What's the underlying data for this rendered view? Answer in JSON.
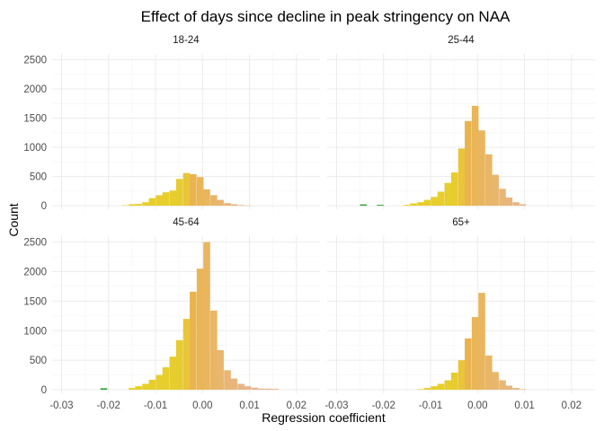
{
  "chart_data": {
    "type": "bar",
    "subtype": "faceted-histogram",
    "title": "Effect of days since decline in peak stringency on NAA",
    "xlabel": "Regression coefficient",
    "ylabel": "Count",
    "xlim": [
      -0.032,
      0.025
    ],
    "ylim": [
      -60,
      2600
    ],
    "x_ticks": [
      -0.03,
      -0.02,
      -0.01,
      0.0,
      0.01,
      0.02
    ],
    "x_tick_labels": [
      "-0.03",
      "-0.02",
      "-0.01",
      "0.00",
      "0.01",
      "0.02"
    ],
    "y_ticks": [
      0,
      500,
      1000,
      1500,
      2000,
      2500
    ],
    "y_tick_labels": [
      "0",
      "500",
      "1000",
      "1500",
      "2000",
      "2500"
    ],
    "grid": true,
    "legend": "none",
    "bin_width": 0.00145,
    "colors": {
      "negative_far": "#2ca02c",
      "negative_near": "#e8d226",
      "center": "#e9b44f",
      "positive": "#e8b58f"
    },
    "facets": [
      {
        "label": "18-24",
        "bins": [
          {
            "x": -0.0165,
            "count": 8
          },
          {
            "x": -0.015,
            "count": 25
          },
          {
            "x": -0.0136,
            "count": 30
          },
          {
            "x": -0.0121,
            "count": 60
          },
          {
            "x": -0.0107,
            "count": 130
          },
          {
            "x": -0.0092,
            "count": 180
          },
          {
            "x": -0.0078,
            "count": 230
          },
          {
            "x": -0.0063,
            "count": 260
          },
          {
            "x": -0.0049,
            "count": 460
          },
          {
            "x": -0.0034,
            "count": 560
          },
          {
            "x": -0.002,
            "count": 540
          },
          {
            "x": -0.0005,
            "count": 490
          },
          {
            "x": 0.0009,
            "count": 280
          },
          {
            "x": 0.0024,
            "count": 180
          },
          {
            "x": 0.0038,
            "count": 100
          },
          {
            "x": 0.0053,
            "count": 45
          },
          {
            "x": 0.0067,
            "count": 25
          },
          {
            "x": 0.0082,
            "count": 12
          },
          {
            "x": 0.0096,
            "count": 5
          }
        ]
      },
      {
        "label": "25-44",
        "bins": [
          {
            "x": -0.0243,
            "count": 22
          },
          {
            "x": -0.0207,
            "count": 15
          },
          {
            "x": -0.015,
            "count": 15
          },
          {
            "x": -0.0136,
            "count": 40
          },
          {
            "x": -0.0121,
            "count": 60
          },
          {
            "x": -0.0107,
            "count": 100
          },
          {
            "x": -0.0092,
            "count": 150
          },
          {
            "x": -0.0078,
            "count": 240
          },
          {
            "x": -0.0063,
            "count": 390
          },
          {
            "x": -0.0049,
            "count": 570
          },
          {
            "x": -0.0034,
            "count": 980
          },
          {
            "x": -0.002,
            "count": 1450
          },
          {
            "x": -0.0005,
            "count": 1710
          },
          {
            "x": 0.0009,
            "count": 1290
          },
          {
            "x": 0.0024,
            "count": 880
          },
          {
            "x": 0.0038,
            "count": 530
          },
          {
            "x": 0.0053,
            "count": 290
          },
          {
            "x": 0.0067,
            "count": 140
          },
          {
            "x": 0.0082,
            "count": 60
          },
          {
            "x": 0.0096,
            "count": 25
          }
        ]
      },
      {
        "label": "45-64",
        "bins": [
          {
            "x": -0.021,
            "count": 25
          },
          {
            "x": -0.015,
            "count": 30
          },
          {
            "x": -0.0136,
            "count": 60
          },
          {
            "x": -0.0121,
            "count": 100
          },
          {
            "x": -0.0107,
            "count": 170
          },
          {
            "x": -0.0092,
            "count": 250
          },
          {
            "x": -0.0078,
            "count": 380
          },
          {
            "x": -0.0063,
            "count": 560
          },
          {
            "x": -0.0049,
            "count": 840
          },
          {
            "x": -0.0034,
            "count": 1200
          },
          {
            "x": -0.002,
            "count": 1660
          },
          {
            "x": -0.0005,
            "count": 2050
          },
          {
            "x": 0.0009,
            "count": 2500
          },
          {
            "x": 0.0024,
            "count": 1340
          },
          {
            "x": 0.0038,
            "count": 670
          },
          {
            "x": 0.0053,
            "count": 330
          },
          {
            "x": 0.0067,
            "count": 190
          },
          {
            "x": 0.0082,
            "count": 100
          },
          {
            "x": 0.0096,
            "count": 60
          },
          {
            "x": 0.0111,
            "count": 35
          },
          {
            "x": 0.0125,
            "count": 20
          },
          {
            "x": 0.014,
            "count": 20
          },
          {
            "x": 0.0155,
            "count": 15
          }
        ]
      },
      {
        "label": "65+",
        "bins": [
          {
            "x": -0.0121,
            "count": 10
          },
          {
            "x": -0.0107,
            "count": 30
          },
          {
            "x": -0.0092,
            "count": 60
          },
          {
            "x": -0.0078,
            "count": 100
          },
          {
            "x": -0.0063,
            "count": 160
          },
          {
            "x": -0.0049,
            "count": 290
          },
          {
            "x": -0.0034,
            "count": 500
          },
          {
            "x": -0.002,
            "count": 870
          },
          {
            "x": -0.0005,
            "count": 1230
          },
          {
            "x": 0.0009,
            "count": 1640
          },
          {
            "x": 0.0024,
            "count": 580
          },
          {
            "x": 0.0038,
            "count": 300
          },
          {
            "x": 0.0053,
            "count": 160
          },
          {
            "x": 0.0067,
            "count": 70
          },
          {
            "x": 0.0082,
            "count": 30
          },
          {
            "x": 0.0096,
            "count": 10
          }
        ]
      }
    ]
  }
}
